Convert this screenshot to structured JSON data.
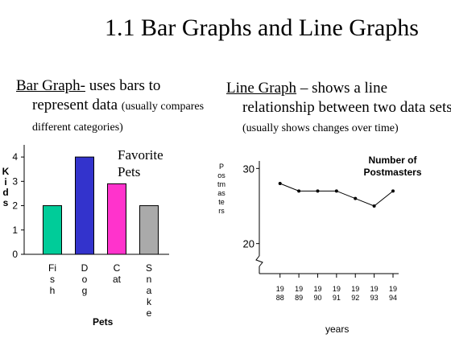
{
  "slide": {
    "title": "1.1 Bar Graphs and Line Graphs",
    "left_text": {
      "term": "Bar Graph-",
      "text": " uses bars to represent data ",
      "note": "(usually compares different categories)"
    },
    "right_text": {
      "term": "Line Graph",
      "text": " – shows a line relationship between two data sets ",
      "note": "(usually shows changes over time)"
    }
  },
  "chart_data": [
    {
      "type": "bar",
      "title": "Favorite Pets",
      "x_label": "Pets",
      "y_label": "Kids",
      "categories": [
        "Fish",
        "Dog",
        "Cat",
        "Snake"
      ],
      "values": [
        2,
        4,
        2.9,
        2
      ],
      "colors": [
        "#00cc99",
        "#3333cc",
        "#ff33cc",
        "#aaaaaa"
      ],
      "ylim": [
        0,
        4.5
      ],
      "yticks": [
        0,
        1,
        2,
        3,
        4
      ]
    },
    {
      "type": "line",
      "title": "Number of Postmasters",
      "x_label": "years",
      "y_label": "Postmasters",
      "x": [
        1988,
        1989,
        1990,
        1991,
        1992,
        1993,
        1994
      ],
      "values": [
        28,
        27,
        27,
        27,
        26,
        25,
        27
      ],
      "color": "#000000",
      "xlim": [
        1986.9,
        1994.3
      ],
      "xticks": [
        1988,
        1989,
        1990,
        1991,
        1992,
        1993,
        1994
      ],
      "ylim": [
        16,
        31
      ],
      "yticks": [
        20,
        30
      ]
    }
  ]
}
